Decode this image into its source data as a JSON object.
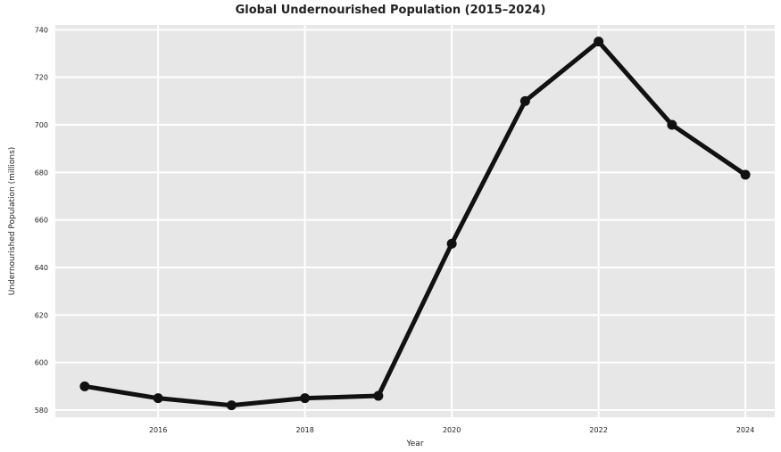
{
  "chart_data": {
    "type": "line",
    "title": "Global Undernourished Population (2015–2024)",
    "xlabel": "Year",
    "ylabel": "Undernourished Population (millions)",
    "x": [
      2015,
      2016,
      2017,
      2018,
      2019,
      2020,
      2021,
      2022,
      2023,
      2024
    ],
    "series": [
      {
        "values": [
          590,
          585,
          582,
          585,
          586,
          650,
          710,
          735,
          700,
          679
        ]
      }
    ],
    "xlim": [
      2014.6,
      2024.4
    ],
    "ylim": [
      577,
      742
    ],
    "xticks": [
      2016,
      2018,
      2020,
      2022,
      2024
    ],
    "yticks": [
      580,
      600,
      620,
      640,
      660,
      680,
      700,
      720,
      740
    ],
    "xtick_labels": [
      "2016",
      "2018",
      "2020",
      "2022",
      "2024"
    ],
    "ytick_labels": [
      "580",
      "600",
      "620",
      "640",
      "660",
      "680",
      "700",
      "720",
      "740"
    ],
    "grid": true,
    "line_color": "#111111",
    "marker_color": "#111111",
    "plot_background": "#e7e7e7",
    "grid_color": "#ffffff"
  }
}
